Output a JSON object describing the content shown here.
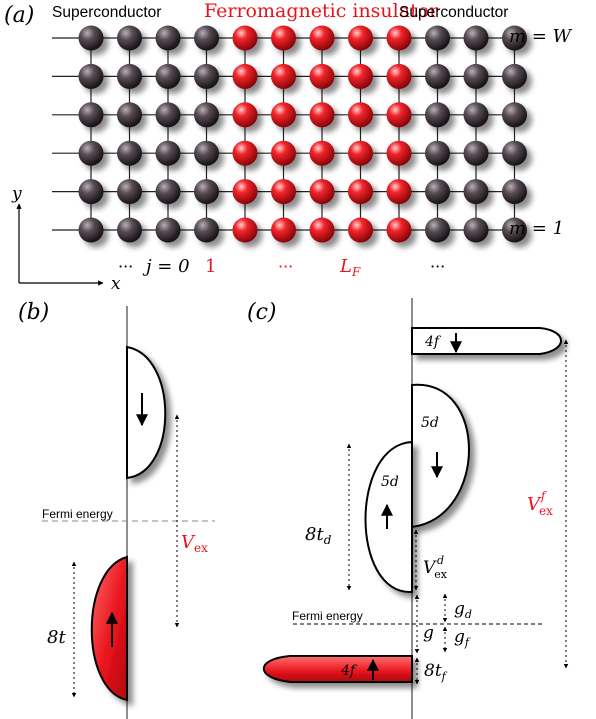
{
  "panel_a": {
    "label": "(a)",
    "header_left": "Superconductor",
    "header_mid": "Ferromagnetic insulator",
    "header_right": "Superconductor",
    "row_top": "m = W",
    "row_bottom": "m = 1",
    "axis_y": "y",
    "axis_x": "x",
    "idx_dots_left": "···",
    "idx_j0": "j = 0",
    "idx_1": "1",
    "idx_dots_mid": "···",
    "idx_LF": "L",
    "idx_LF_sub": "F",
    "idx_dots_right": "···",
    "lattice": {
      "rows": 6,
      "columns": 12,
      "ferromagnet_columns": [
        4,
        5,
        6,
        7,
        8
      ],
      "colors": {
        "superconductor": "#4a4046",
        "ferromagnet": "#e8141c"
      }
    }
  },
  "panel_b": {
    "label": "(b)",
    "fermi": "Fermi energy",
    "vex": "V",
    "vex_sub": "ex",
    "bandwidth": "8t"
  },
  "panel_c": {
    "label": "(c)",
    "f_up_band": "4f",
    "f_down_band": "4f",
    "d_up_band": "5d",
    "d_down_band": "5d",
    "fermi": "Fermi energy",
    "vexf": "V",
    "vexf_sub": "ex",
    "vexf_sup": "f",
    "vexd": "V",
    "vexd_sub": "ex",
    "vexd_sup": "d",
    "td": "8t",
    "td_sub": "d",
    "tf": "8t",
    "tf_sub": "f",
    "gd": "g",
    "gd_sub": "d",
    "gf": "g",
    "gf_sub": "f",
    "g": "g"
  },
  "colors": {
    "red": "#e8141c",
    "dark": "#4a4046"
  }
}
